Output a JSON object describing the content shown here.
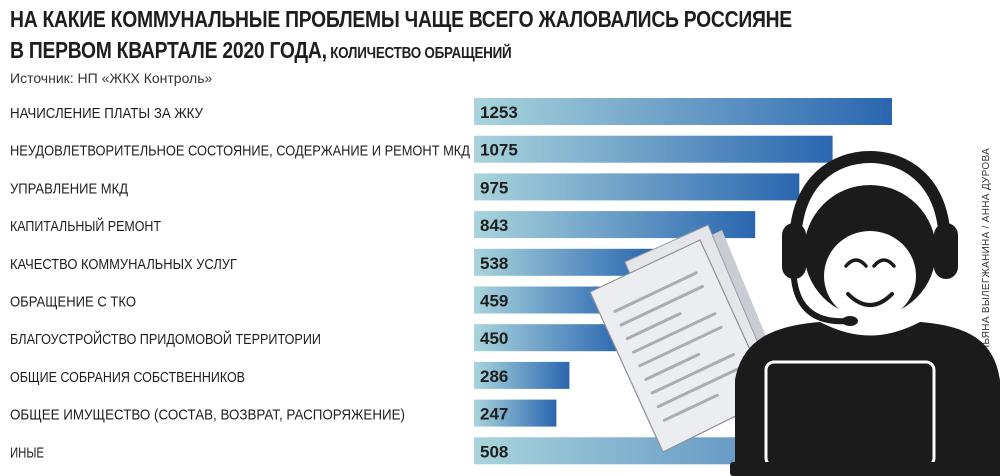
{
  "header": {
    "title_line1": "НА КАКИЕ КОММУНАЛЬНЫЕ ПРОБЛЕМЫ ЧАЩЕ ВСЕГО ЖАЛОВАЛИСЬ РОССИЯНЕ",
    "title_line2": "В ПЕРВОМ КВАРТАЛЕ 2020 ГОДА,",
    "title_unit": " КОЛИЧЕСТВО ОБРАЩЕНИЙ",
    "source": "Источник: НП «ЖКХ Контроль»"
  },
  "credit": "ИНФОГРАФИКА «РГ» / УЛЬЯНА ВЫЛЕГЖАНИНА / АННА ДУРОВА",
  "illustration": {
    "icon": "call-center-operator-with-documents-and-laptop",
    "colors": {
      "dark": "#1b1b1b",
      "paper": "#ecedf0",
      "text_lines": "#a9acb3"
    }
  },
  "chart_data": {
    "type": "bar",
    "orientation": "horizontal",
    "title": "НА КАКИЕ КОММУНАЛЬНЫЕ ПРОБЛЕМЫ ЧАЩЕ ВСЕГО ЖАЛОВАЛИСЬ РОССИЯНЕ В ПЕРВОМ КВАРТАЛЕ 2020 ГОДА",
    "subtitle": "количество обращений",
    "categories": [
      "НАЧИСЛЕНИЕ ПЛАТЫ ЗА ЖКУ",
      "НЕУДОВЛЕТВОРИТЕЛЬНОЕ СОСТОЯНИЕ, СОДЕРЖАНИЕ И РЕМОНТ МКД",
      "УПРАВЛЕНИЕ МКД",
      "КАПИТАЛЬНЫЙ РЕМОНТ",
      "КАЧЕСТВО КОММУНАЛЬНЫХ УСЛУГ",
      "ОБРАЩЕНИЕ С ТКО",
      "БЛАГОУСТРОЙСТВО ПРИДОМОВОЙ ТЕРРИТОРИИ",
      "ОБЩИЕ СОБРАНИЯ СОБСТВЕННИКОВ",
      "ОБЩЕЕ ИМУЩЕСТВО (СОСТАВ, ВОЗВРАТ, РАСПОРЯЖЕНИЕ)",
      "ИНЫЕ"
    ],
    "values": [
      1253,
      1075,
      975,
      843,
      538,
      459,
      450,
      286,
      247,
      508
    ],
    "value_labels": [
      "1253",
      "1075",
      "975",
      "843",
      "538",
      "459",
      "450",
      "286",
      "247",
      "508"
    ],
    "xlim": [
      0,
      1253
    ],
    "grid": false,
    "legend": "none",
    "colors": {
      "bar_start": "#a9d4dc",
      "bar_end": "#2a66b0"
    }
  }
}
